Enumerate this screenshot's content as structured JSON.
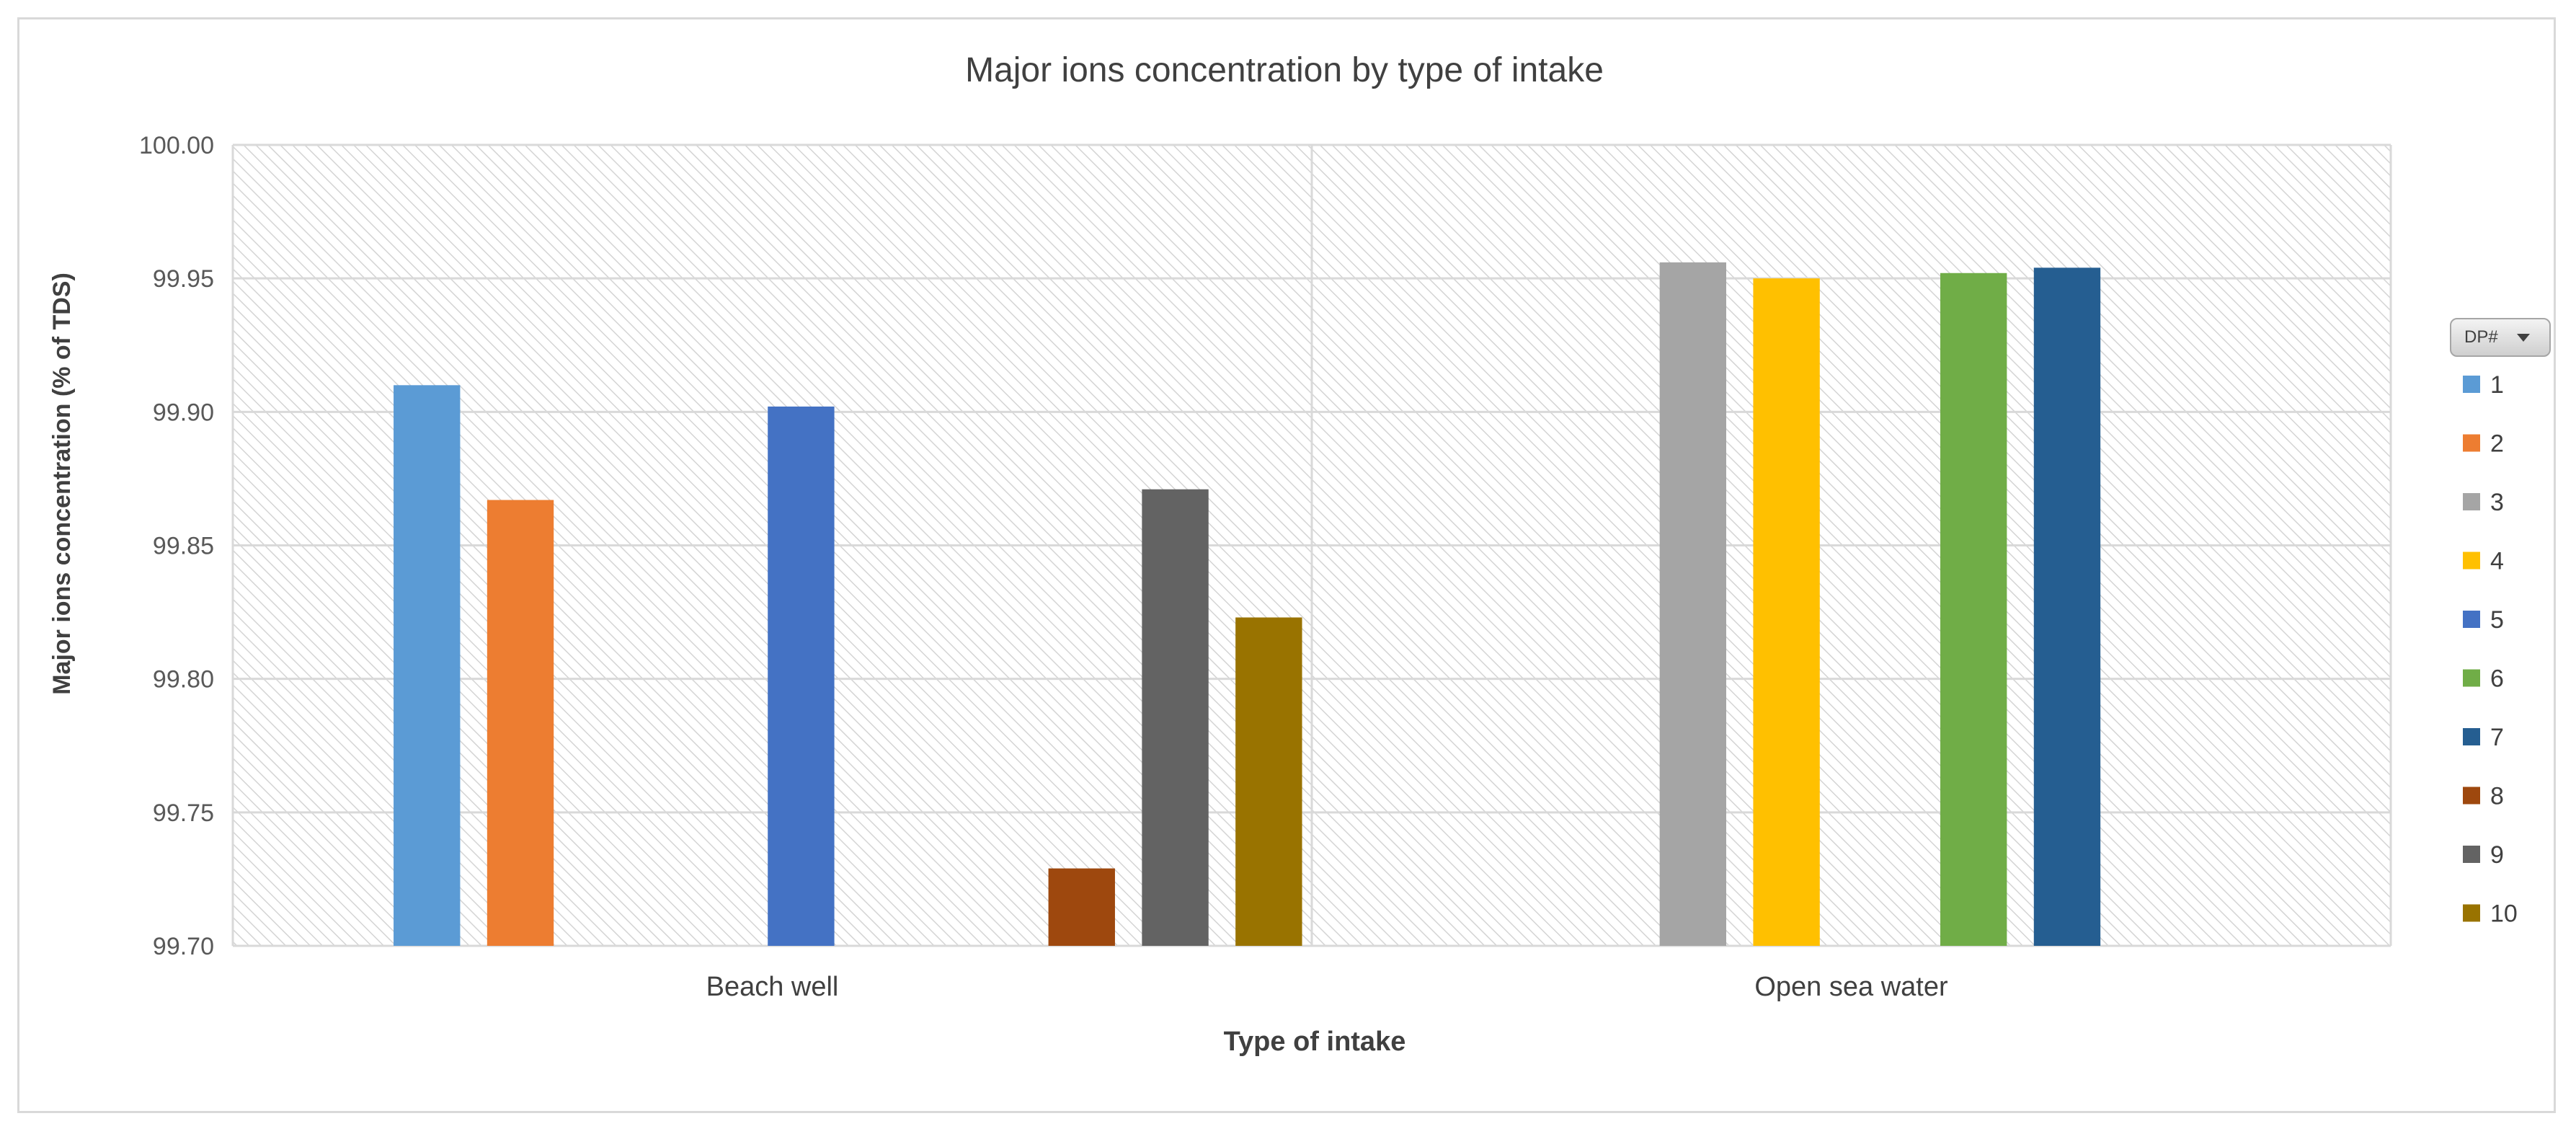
{
  "chart_data": {
    "type": "bar",
    "title": "Major ions concentration by type of intake",
    "xlabel": "Type of intake",
    "ylabel": "Major ions concentration (% of TDS)",
    "ylim": [
      99.7,
      100.0
    ],
    "yticks": [
      "99.70",
      "99.75",
      "99.80",
      "99.85",
      "99.90",
      "99.95",
      "100.00"
    ],
    "categories": [
      "Beach well",
      "Open sea water"
    ],
    "legend_title": "DP#",
    "legend_position": "right",
    "series": [
      {
        "name": "1",
        "color": "#5b9bd5",
        "values": [
          99.91,
          null
        ]
      },
      {
        "name": "2",
        "color": "#ed7d31",
        "values": [
          99.867,
          null
        ]
      },
      {
        "name": "3",
        "color": "#a5a5a5",
        "values": [
          null,
          99.956
        ]
      },
      {
        "name": "4",
        "color": "#ffc000",
        "values": [
          null,
          99.95
        ]
      },
      {
        "name": "5",
        "color": "#4472c4",
        "values": [
          99.902,
          null
        ]
      },
      {
        "name": "6",
        "color": "#70ad47",
        "values": [
          null,
          99.952
        ]
      },
      {
        "name": "7",
        "color": "#255e91",
        "values": [
          null,
          99.954
        ]
      },
      {
        "name": "8",
        "color": "#9e480e",
        "values": [
          99.729,
          null
        ]
      },
      {
        "name": "9",
        "color": "#636363",
        "values": [
          99.871,
          null
        ]
      },
      {
        "name": "10",
        "color": "#997300",
        "values": [
          99.823,
          null
        ]
      }
    ]
  }
}
